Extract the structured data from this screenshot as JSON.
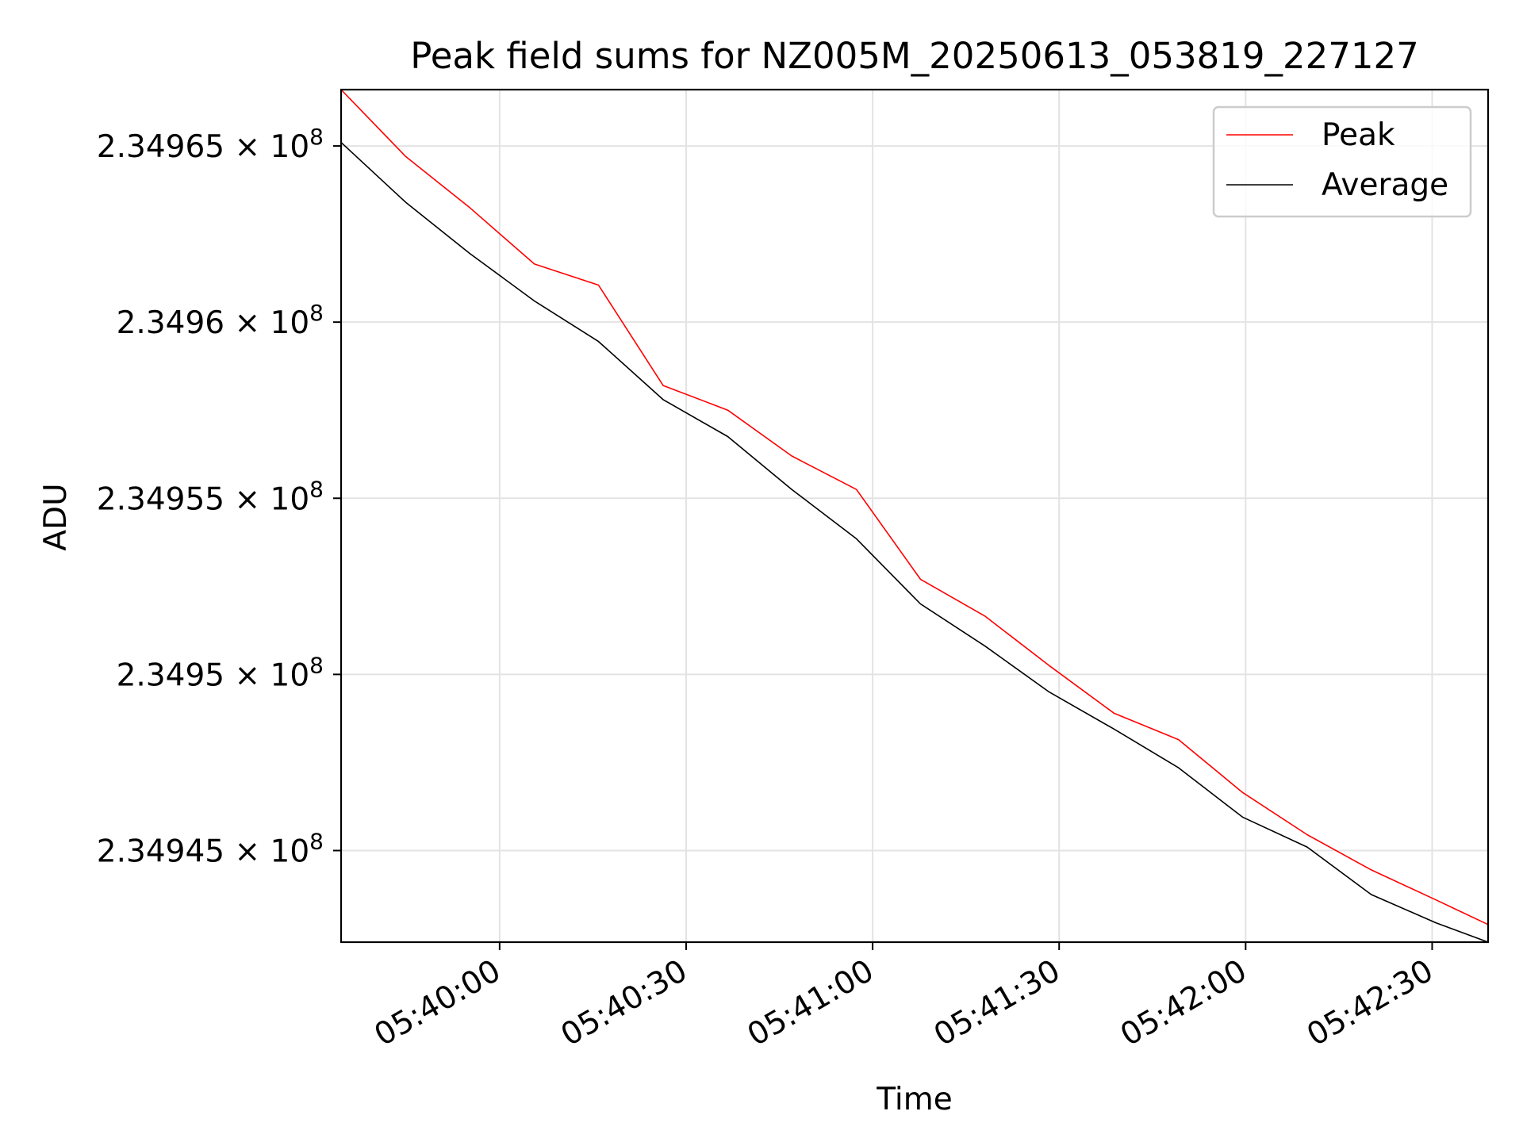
{
  "chart_data": {
    "type": "line",
    "title": "Peak field sums for NZ005M_20250613_053819_227127",
    "xlabel": "Time",
    "ylabel": "ADU",
    "x_ticks": [
      "05:40:00",
      "05:40:30",
      "05:41:00",
      "05:41:30",
      "05:42:00",
      "05:42:30"
    ],
    "y_ticks": [
      {
        "mantissa": "2.34945",
        "exponent": "8",
        "value": 234945000
      },
      {
        "mantissa": "2.3495",
        "exponent": "8",
        "value": 234950000
      },
      {
        "mantissa": "2.34955",
        "exponent": "8",
        "value": 234955000
      },
      {
        "mantissa": "2.3496",
        "exponent": "8",
        "value": 234960000
      },
      {
        "mantissa": "2.34965",
        "exponent": "8",
        "value": 234965000
      }
    ],
    "y_scale": "log",
    "xlim": [
      "05:39:34.5",
      "05:42:39.0"
    ],
    "ylim": [
      234942400,
      234966600
    ],
    "grid": true,
    "legend_position": "upper right",
    "x": [
      "05:39:34.5",
      "05:39:44.9",
      "05:39:55.2",
      "05:40:05.6",
      "05:40:15.9",
      "05:40:26.3",
      "05:40:36.7",
      "05:40:47.0",
      "05:40:57.4",
      "05:41:07.7",
      "05:41:18.1",
      "05:41:28.4",
      "05:41:38.8",
      "05:41:49.2",
      "05:41:59.5",
      "05:42:09.9",
      "05:42:20.2",
      "05:42:30.6",
      "05:42:39.0"
    ],
    "series": [
      {
        "name": "Peak",
        "color": "#ff0000",
        "values": [
          234966600,
          234964700,
          234963250,
          234961650,
          234961050,
          234958200,
          234957500,
          234956200,
          234955250,
          234952700,
          234951650,
          234950250,
          234948900,
          234948150,
          234946650,
          234945450,
          234944450,
          234943600,
          234942900
        ]
      },
      {
        "name": "Average",
        "color": "#000000",
        "values": [
          234965100,
          234963400,
          234961950,
          234960600,
          234959450,
          234957800,
          234956750,
          234955250,
          234953850,
          234952000,
          234950800,
          234949500,
          234948450,
          234947350,
          234945950,
          234945100,
          234943750,
          234942950,
          234942400
        ]
      }
    ]
  }
}
